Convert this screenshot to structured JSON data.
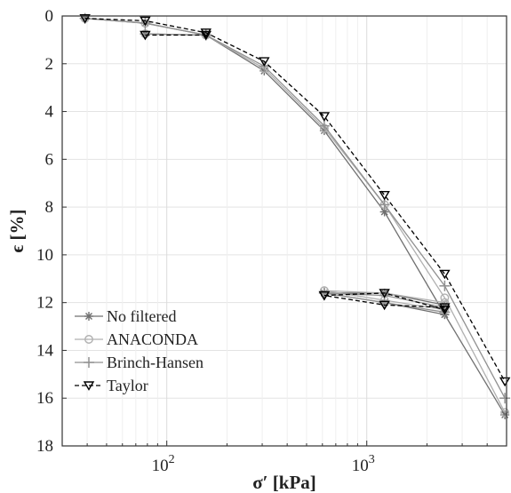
{
  "chart_data": {
    "type": "line",
    "title": "",
    "xlabel": "σ′ [kPa]",
    "ylabel": "ϵ [%]",
    "xscale": "log",
    "xlim": [
      30,
      5000
    ],
    "ylim": [
      0,
      18
    ],
    "y_inverted": true,
    "grid": true,
    "legend_position": "bottom-left",
    "x_ticks": [
      {
        "value": 100,
        "base": "10",
        "exp": "2"
      },
      {
        "value": 1000,
        "base": "10",
        "exp": "3"
      }
    ],
    "y_ticks": [
      0,
      2,
      4,
      6,
      8,
      10,
      12,
      14,
      16,
      18
    ],
    "series": [
      {
        "name": "No filtered",
        "color": "#707070",
        "dash": "solid",
        "marker": "asterisk",
        "segments": [
          {
            "x": [
              39,
              78,
              157,
              307,
              613,
              1226,
              2453,
              4905
            ],
            "y": [
              0.1,
              0.3,
              0.8,
              2.3,
              4.8,
              8.2,
              12.5,
              16.7
            ]
          },
          {
            "x": [
              2453,
              1226,
              613
            ],
            "y": [
              12.5,
              12.0,
              11.6
            ]
          },
          {
            "x": [
              613,
              1226,
              2453
            ],
            "y": [
              11.6,
              11.6,
              12.1
            ]
          },
          {
            "x": [
              78,
              157
            ],
            "y": [
              0.75,
              0.8
            ]
          }
        ]
      },
      {
        "name": "ANACONDA",
        "color": "#b0b0b0",
        "dash": "solid",
        "marker": "circle",
        "segments": [
          {
            "x": [
              39,
              78,
              157,
              307,
              613,
              1226,
              2453,
              4905
            ],
            "y": [
              0.1,
              0.3,
              0.8,
              2.2,
              4.7,
              7.9,
              11.8,
              16.6
            ]
          },
          {
            "x": [
              2453,
              1226,
              613
            ],
            "y": [
              12.3,
              11.9,
              11.5
            ]
          },
          {
            "x": [
              613,
              1226,
              2453
            ],
            "y": [
              11.5,
              11.6,
              12.0
            ]
          },
          {
            "x": [
              78,
              157
            ],
            "y": [
              0.75,
              0.8
            ]
          }
        ]
      },
      {
        "name": "Brinch-Hansen",
        "color": "#909090",
        "dash": "solid",
        "marker": "plus",
        "segments": [
          {
            "x": [
              39,
              78,
              157,
              307,
              613,
              1226,
              2453,
              4905
            ],
            "y": [
              0.1,
              0.3,
              0.8,
              2.1,
              4.6,
              7.9,
              11.3,
              16.0
            ]
          },
          {
            "x": [
              2453,
              1226,
              613
            ],
            "y": [
              12.4,
              12.0,
              11.6
            ]
          },
          {
            "x": [
              613,
              1226,
              2453
            ],
            "y": [
              11.6,
              11.7,
              12.2
            ]
          },
          {
            "x": [
              78,
              157
            ],
            "y": [
              0.75,
              0.8
            ]
          }
        ]
      },
      {
        "name": "Taylor",
        "color": "#000000",
        "dash": "dashed",
        "marker": "triangle-down",
        "segments": [
          {
            "x": [
              39,
              78,
              157,
              307,
              613,
              1226,
              2453,
              4905
            ],
            "y": [
              0.1,
              0.2,
              0.7,
              1.9,
              4.2,
              7.5,
              10.8,
              15.3
            ]
          },
          {
            "x": [
              2453,
              1226,
              613
            ],
            "y": [
              12.2,
              12.1,
              11.7
            ]
          },
          {
            "x": [
              613,
              1226,
              2453
            ],
            "y": [
              11.7,
              11.6,
              12.3
            ]
          },
          {
            "x": [
              78,
              157
            ],
            "y": [
              0.8,
              0.8
            ]
          }
        ]
      }
    ]
  }
}
